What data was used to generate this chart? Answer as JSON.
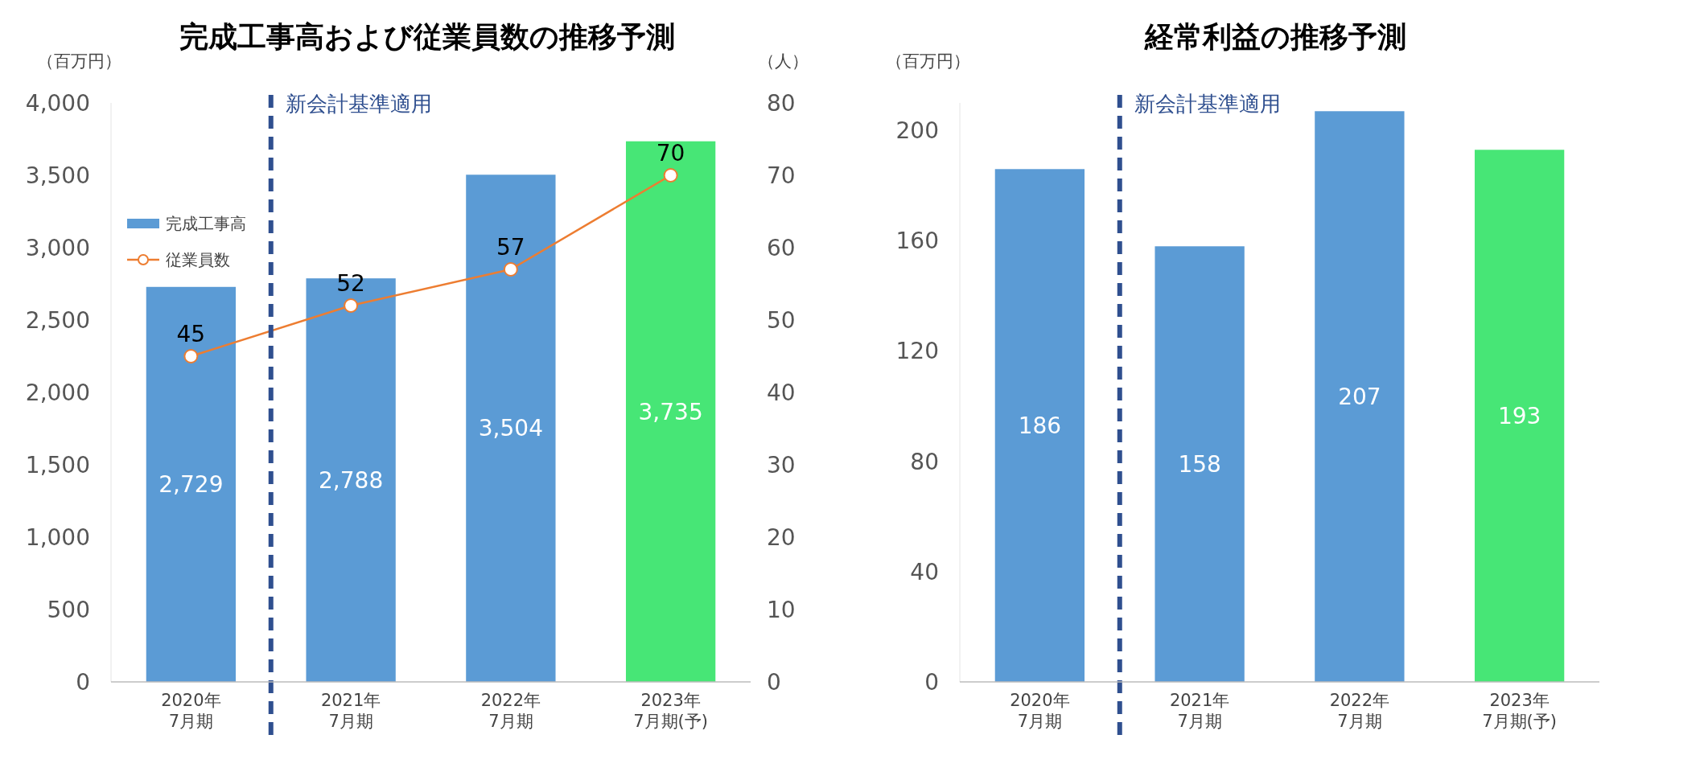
{
  "chart_data": [
    {
      "type": "bar",
      "title": "完成工事高および従業員数の推移予測",
      "ylabel": "（百万円）",
      "y2label": "（人）",
      "categories": [
        "2020年\n7月期",
        "2021年\n7月期",
        "2022年\n7月期",
        "2023年\n7月期(予)"
      ],
      "series": [
        {
          "name": "完成工事高",
          "type": "bar",
          "color": "#5b9bd5",
          "colors": [
            "#5b9bd5",
            "#5b9bd5",
            "#5b9bd5",
            "#47e676"
          ],
          "values": [
            2729,
            2788,
            3504,
            3735
          ],
          "value_labels": [
            "2,729",
            "2,788",
            "3,504",
            "3,735"
          ]
        },
        {
          "name": "従業員数",
          "type": "line",
          "axis": "y2",
          "color": "#ed7d31",
          "values": [
            45,
            52,
            57,
            70
          ],
          "value_labels": [
            "45",
            "52",
            "57",
            "70"
          ]
        }
      ],
      "marker": "circle",
      "legend": "top left",
      "ylim": [
        0,
        4000
      ],
      "yticks": [
        0,
        500,
        {
          "value": 1000,
          "label": "1,000"
        },
        {
          "value": 1500,
          "label": "1,500"
        },
        {
          "value": 2000,
          "label": "2,000"
        },
        {
          "value": 2500,
          "label": "2,500"
        },
        {
          "value": 3000,
          "label": "3,000"
        },
        {
          "value": 3500,
          "label": "3,500"
        },
        {
          "value": 4000,
          "label": "4,000"
        }
      ],
      "y2lim": [
        0,
        80
      ],
      "y2ticks": [
        0,
        10,
        20,
        30,
        40,
        50,
        60,
        70,
        80
      ],
      "annotations": [
        "新会計基準適用"
      ]
    },
    {
      "type": "bar",
      "title": "経常利益の推移予測",
      "ylabel": "（百万円）",
      "categories": [
        "2020年\n7月期",
        "2021年\n7月期",
        "2022年\n7月期",
        "2023年\n7月期(予)"
      ],
      "values": [
        186,
        158,
        207,
        193
      ],
      "colors": [
        "#5b9bd5",
        "#5b9bd5",
        "#5b9bd5",
        "#47e676"
      ],
      "data_labels": true,
      "ylim": [
        0,
        210
      ],
      "yticks": [
        0,
        40,
        80,
        120,
        160,
        200
      ],
      "annotations": [
        "新会計基準適用"
      ]
    }
  ]
}
